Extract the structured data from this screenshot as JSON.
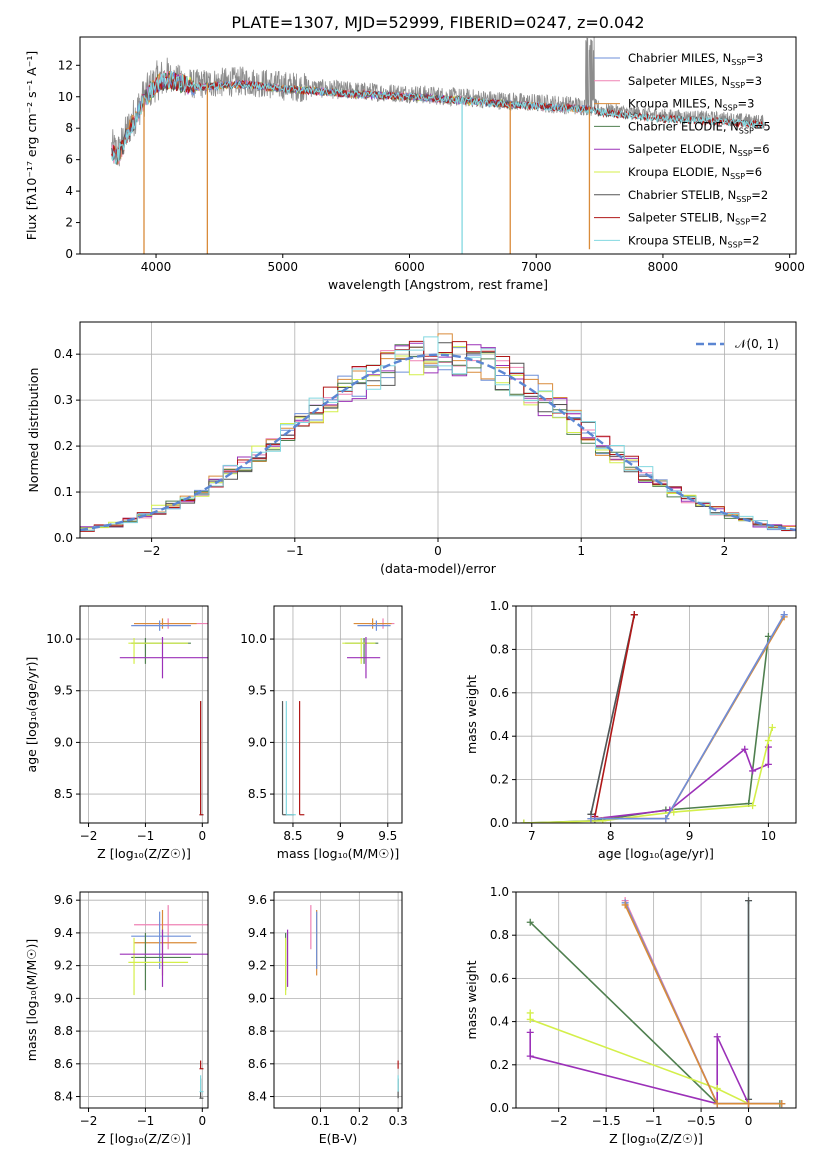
{
  "figure": {
    "title": "PLATE=1307, MJD=52999, FIBERID=0247, z=0.042"
  },
  "colors": {
    "Chabrier MILES": "#6d8fd8",
    "Salpeter MILES": "#ef82b4",
    "Kroupa MILES": "#d98b3a",
    "Chabrier ELODIE": "#4f7f4f",
    "Salpeter ELODIE": "#9b30b8",
    "Kroupa ELODIE": "#d4ef4a",
    "Chabrier STELIB": "#555555",
    "Salpeter STELIB": "#b01818",
    "Kroupa STELIB": "#82d8e0",
    "data": "#8c8c8c",
    "gauss": "#5b86d2",
    "grid": "#b0b0b0"
  },
  "models": [
    {
      "name": "Chabrier MILES",
      "nssp": 3
    },
    {
      "name": "Salpeter MILES",
      "nssp": 3
    },
    {
      "name": "Kroupa MILES",
      "nssp": 3
    },
    {
      "name": "Chabrier ELODIE",
      "nssp": 5
    },
    {
      "name": "Salpeter ELODIE",
      "nssp": 6
    },
    {
      "name": "Kroupa ELODIE",
      "nssp": 6
    },
    {
      "name": "Chabrier STELIB",
      "nssp": 2
    },
    {
      "name": "Salpeter STELIB",
      "nssp": 2
    },
    {
      "name": "Kroupa STELIB",
      "nssp": 2
    }
  ],
  "chart_data": [
    {
      "type": "line",
      "xlabel": "wavelength [Angstrom, rest frame]",
      "ylabel": "Flux [fλ10⁻¹⁷ erg cm⁻² s⁻¹ A⁻¹]",
      "xlim": [
        3400,
        9050
      ],
      "ylim": [
        0,
        13.8
      ],
      "xticks": [
        4000,
        5000,
        6000,
        7000,
        8000,
        9000
      ],
      "yticks": [
        0,
        2,
        4,
        6,
        8,
        10,
        12
      ],
      "legend": "upper right",
      "data_range": [
        3650,
        8800
      ],
      "continuum": [
        [
          3650,
          6.7
        ],
        [
          3700,
          6.4
        ],
        [
          3800,
          8.3
        ],
        [
          3900,
          9.9
        ],
        [
          4000,
          11.0
        ],
        [
          4100,
          11.3
        ],
        [
          4300,
          10.8
        ],
        [
          4500,
          10.9
        ],
        [
          4700,
          11.0
        ],
        [
          5000,
          10.7
        ],
        [
          5500,
          10.4
        ],
        [
          6000,
          10.2
        ],
        [
          6500,
          9.9
        ],
        [
          7000,
          9.6
        ],
        [
          7400,
          9.4
        ],
        [
          7500,
          9.2
        ],
        [
          8000,
          8.8
        ],
        [
          8500,
          8.6
        ],
        [
          8800,
          8.4
        ]
      ],
      "model_ranges": {
        "MILES": [
          3650,
          7410
        ],
        "ELODIE": [
          3900,
          6800
        ],
        "STELIB": [
          3650,
          8800
        ]
      },
      "absorption_dips": [
        [
          3905,
          0
        ],
        [
          4405,
          0
        ],
        [
          6415,
          0
        ],
        [
          6795,
          0
        ],
        [
          7420,
          0.3
        ]
      ]
    },
    {
      "type": "histogram",
      "xlabel": "(data-model)/error",
      "ylabel": "Normed distribution",
      "xlim": [
        -2.5,
        2.5
      ],
      "ylim": [
        0,
        0.47
      ],
      "xticks": [
        -2,
        -1,
        0,
        1,
        2
      ],
      "yticks": [
        0.0,
        0.1,
        0.2,
        0.3,
        0.4
      ],
      "bin_width": 0.1,
      "legend": "upper right",
      "gauss_label": "𝒩(0, 1)"
    },
    {
      "type": "scatter",
      "xlabel": "Z [log₁₀(Z/Z☉)]",
      "ylabel": "age  [log₁₀(age/yr)]",
      "xlim": [
        -2.15,
        0.1
      ],
      "ylim": [
        8.22,
        10.32
      ],
      "xticks": [
        -2,
        -1,
        0
      ],
      "yticks": [
        8.5,
        9.0,
        9.5,
        10.0
      ]
    },
    {
      "type": "scatter",
      "xlabel": "mass [log₁₀(M/M☉)]",
      "ylabel": "",
      "xlim": [
        8.3,
        9.65
      ],
      "ylim": [
        8.22,
        10.32
      ],
      "xticks": [
        8.5,
        9.0,
        9.5
      ],
      "yticks": [
        8.5,
        9.0,
        9.5,
        10.0
      ]
    },
    {
      "type": "line",
      "xlabel": "age  [log₁₀(age/yr)]",
      "ylabel": "mass weight",
      "xlim": [
        6.8,
        10.35
      ],
      "ylim": [
        0,
        1.0
      ],
      "xticks": [
        7,
        8,
        9,
        10
      ],
      "yticks": [
        0.0,
        0.2,
        0.4,
        0.6,
        0.8,
        1.0
      ],
      "series": [
        {
          "name": "Kroupa STELIB",
          "x": [
            7.75,
            8.3
          ],
          "y": [
            0.04,
            0.96
          ]
        },
        {
          "name": "Chabrier STELIB",
          "x": [
            7.75,
            8.3
          ],
          "y": [
            0.04,
            0.96
          ]
        },
        {
          "name": "Salpeter STELIB",
          "x": [
            7.8,
            8.3
          ],
          "y": [
            0.03,
            0.96
          ]
        },
        {
          "name": "Chabrier ELODIE",
          "x": [
            6.9,
            7.8,
            8.7,
            9.75,
            10.0
          ],
          "y": [
            0.0,
            0.01,
            0.06,
            0.09,
            0.86
          ]
        },
        {
          "name": "Salpeter ELODIE",
          "x": [
            7.8,
            8.75,
            9.7,
            9.8,
            10.0,
            10.0
          ],
          "y": [
            0.02,
            0.06,
            0.34,
            0.24,
            0.27,
            0.35
          ]
        },
        {
          "name": "Kroupa ELODIE",
          "x": [
            6.9,
            7.9,
            8.8,
            9.8,
            10.0,
            10.05
          ],
          "y": [
            0.0,
            0.01,
            0.05,
            0.08,
            0.38,
            0.44
          ]
        },
        {
          "name": "Salpeter MILES",
          "x": [
            7.75,
            8.7,
            10.2
          ],
          "y": [
            0.02,
            0.02,
            0.96
          ]
        },
        {
          "name": "Kroupa MILES",
          "x": [
            7.75,
            8.7,
            10.2
          ],
          "y": [
            0.02,
            0.02,
            0.95
          ]
        },
        {
          "name": "Chabrier MILES",
          "x": [
            7.75,
            8.7,
            10.2
          ],
          "y": [
            0.02,
            0.02,
            0.96
          ]
        }
      ]
    },
    {
      "type": "scatter",
      "xlabel": "Z [log₁₀(Z/Z☉)]",
      "ylabel": "mass [log₁₀(M/M☉)]",
      "xlim": [
        -2.15,
        0.1
      ],
      "ylim": [
        8.33,
        9.65
      ],
      "xticks": [
        -2,
        -1,
        0
      ],
      "yticks": [
        8.4,
        8.6,
        8.8,
        9.0,
        9.2,
        9.4,
        9.6
      ]
    },
    {
      "type": "scatter",
      "xlabel": "E(B-V)",
      "ylabel": "",
      "xlim": [
        -0.02,
        0.31
      ],
      "ylim": [
        8.33,
        9.65
      ],
      "xticks": [
        0.1,
        0.2,
        0.3
      ],
      "yticks": [
        8.4,
        8.6,
        8.8,
        9.0,
        9.2,
        9.4,
        9.6
      ]
    },
    {
      "type": "line",
      "xlabel": "Z [log₁₀(Z/Z☉)]",
      "ylabel": "mass weight",
      "xlim": [
        -2.45,
        0.5
      ],
      "ylim": [
        0,
        1.0
      ],
      "xticks": [
        -2.0,
        -1.5,
        -1.0,
        -0.5,
        0.0
      ],
      "yticks": [
        0.0,
        0.2,
        0.4,
        0.6,
        0.8,
        1.0
      ],
      "series": [
        {
          "name": "Kroupa STELIB",
          "x": [
            0.0,
            0.0
          ],
          "y": [
            0.04,
            0.96
          ]
        },
        {
          "name": "Chabrier STELIB",
          "x": [
            0.0,
            0.0
          ],
          "y": [
            0.04,
            0.96
          ]
        },
        {
          "name": "Chabrier ELODIE",
          "x": [
            -2.3,
            -0.33,
            0.0,
            0.33
          ],
          "y": [
            0.86,
            0.02,
            0.02,
            0.02
          ]
        },
        {
          "name": "Salpeter ELODIE",
          "x": [
            -2.3,
            -2.3,
            -0.33,
            -0.33,
            0.0
          ],
          "y": [
            0.35,
            0.24,
            0.02,
            0.33,
            0.02
          ]
        },
        {
          "name": "Kroupa ELODIE",
          "x": [
            -2.3,
            -2.3,
            -0.33,
            0.0
          ],
          "y": [
            0.44,
            0.41,
            0.09,
            0.02
          ]
        },
        {
          "name": "Salpeter MILES",
          "x": [
            -1.3,
            -0.33,
            0.0,
            0.35
          ],
          "y": [
            0.96,
            0.02,
            0.02,
            0.02
          ]
        },
        {
          "name": "Chabrier MILES",
          "x": [
            -1.3,
            -0.33,
            0.0,
            0.35
          ],
          "y": [
            0.95,
            0.02,
            0.02,
            0.02
          ]
        },
        {
          "name": "Kroupa MILES",
          "x": [
            -1.3,
            -0.33,
            0.0,
            0.35
          ],
          "y": [
            0.94,
            0.02,
            0.02,
            0.02
          ]
        }
      ]
    }
  ],
  "summary_points": [
    {
      "name": "Salpeter MILES",
      "age": 10.15,
      "age_err": [
        0.05,
        0.05
      ],
      "Z": -0.6,
      "Z_err": [
        0.6,
        0.7
      ],
      "mass": 9.45,
      "mass_err": [
        0.15,
        0.12
      ],
      "ebv": 0.075,
      "ebv_err": 0.0
    },
    {
      "name": "Kroupa MILES",
      "age": 10.15,
      "age_err": [
        0.05,
        0.05
      ],
      "Z": -0.7,
      "Z_err": [
        0.5,
        0.6
      ],
      "mass": 9.34,
      "mass_err": [
        0.2,
        0.2
      ],
      "ebv": 0.09,
      "ebv_err": 0.0
    },
    {
      "name": "Chabrier MILES",
      "age": 10.13,
      "age_err": [
        0.05,
        0.05
      ],
      "Z": -0.75,
      "Z_err": [
        0.5,
        0.55
      ],
      "mass": 9.38,
      "mass_err": [
        0.2,
        0.15
      ],
      "ebv": 0.09,
      "ebv_err": 0.0
    },
    {
      "name": "Chabrier ELODIE",
      "age": 9.96,
      "age_err": [
        0.2,
        0.05
      ],
      "Z": -1.0,
      "Z_err": [
        0.25,
        0.8
      ],
      "mass": 9.25,
      "mass_err": [
        0.2,
        0.15
      ],
      "ebv": 0.01,
      "ebv_err": 0.0
    },
    {
      "name": "Kroupa ELODIE",
      "age": 9.96,
      "age_err": [
        0.2,
        0.05
      ],
      "Z": -1.2,
      "Z_err": [
        0.1,
        0.95
      ],
      "mass": 9.22,
      "mass_err": [
        0.2,
        0.15
      ],
      "ebv": 0.01,
      "ebv_err": 0.0
    },
    {
      "name": "Salpeter ELODIE",
      "age": 9.82,
      "age_err": [
        0.2,
        0.2
      ],
      "Z": -0.7,
      "Z_err": [
        0.75,
        1.4
      ],
      "mass": 9.27,
      "mass_err": [
        0.2,
        0.15
      ],
      "ebv": 0.015,
      "ebv_err": 0.0
    },
    {
      "name": "Chabrier STELIB",
      "age": 8.3,
      "age_err": [
        0.0,
        1.1
      ],
      "Z": -0.03,
      "Z_err": [
        0.02,
        0.05
      ],
      "mass": 8.39,
      "mass_err": [
        0.0,
        0.12
      ],
      "ebv": 0.3,
      "ebv_err": 0.0
    },
    {
      "name": "Kroupa STELIB",
      "age": 8.3,
      "age_err": [
        0.0,
        1.1
      ],
      "Z": -0.03,
      "Z_err": [
        0.02,
        0.05
      ],
      "mass": 8.43,
      "mass_err": [
        0.0,
        0.1
      ],
      "ebv": 0.3,
      "ebv_err": 0.0
    },
    {
      "name": "Salpeter STELIB",
      "age": 8.3,
      "age_err": [
        0.0,
        1.1
      ],
      "Z": -0.03,
      "Z_err": [
        0.02,
        0.05
      ],
      "mass": 8.57,
      "mass_err": [
        0.0,
        0.05
      ],
      "ebv": 0.3,
      "ebv_err": 0.0
    }
  ]
}
